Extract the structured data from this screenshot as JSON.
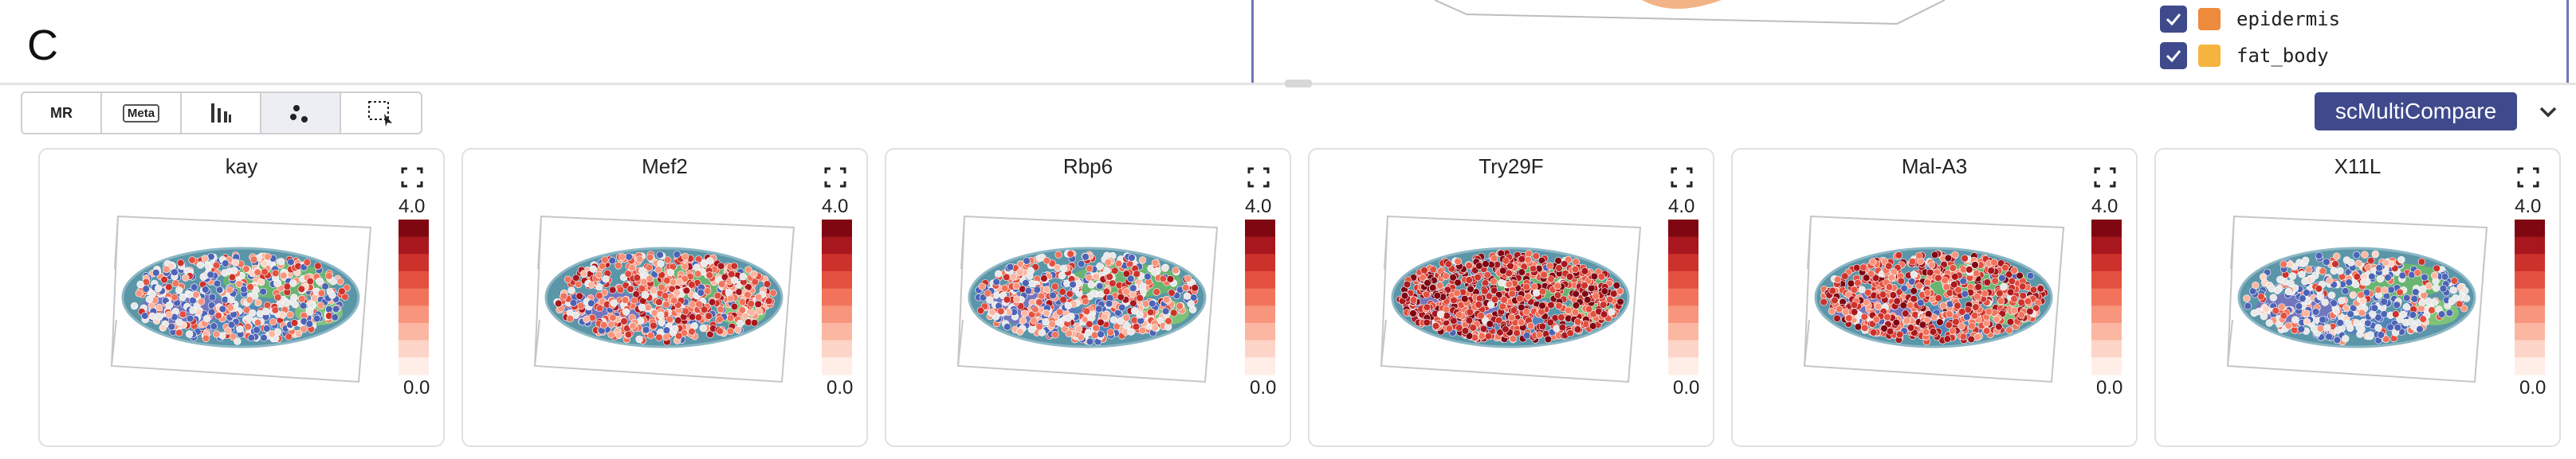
{
  "panel_label": "C",
  "legend": [
    {
      "label": "epidermis",
      "color": "#ee8a3c",
      "checked": true
    },
    {
      "label": "fat_body",
      "color": "#f6b43e",
      "checked": true
    }
  ],
  "toolbar": {
    "buttons": [
      {
        "name": "mr-button",
        "label": "MR",
        "active": false
      },
      {
        "name": "meta-button",
        "label": "Meta",
        "active": false
      },
      {
        "name": "bar-chart-button",
        "label": "",
        "icon": "bar-chart-icon",
        "active": false
      },
      {
        "name": "scatter-button",
        "label": "",
        "icon": "scatter-icon",
        "active": true
      },
      {
        "name": "lasso-select-button",
        "label": "",
        "icon": "box-select-icon",
        "active": false
      }
    ]
  },
  "compare_button": "scMultiCompare",
  "colorbar": {
    "max_label": "4.0",
    "min_label": "0.0"
  },
  "colors": {
    "accent": "#3f4a8c",
    "divider": "#6d78b6"
  },
  "genes": [
    {
      "name": "kay",
      "expression_level": 0.35,
      "red_fraction": 0.45
    },
    {
      "name": "Mef2",
      "expression_level": 0.55,
      "red_fraction": 0.78
    },
    {
      "name": "Rbp6",
      "expression_level": 0.45,
      "red_fraction": 0.55
    },
    {
      "name": "Try29F",
      "expression_level": 0.9,
      "red_fraction": 0.97
    },
    {
      "name": "Mal-A3",
      "expression_level": 0.7,
      "red_fraction": 0.9
    },
    {
      "name": "X11L",
      "expression_level": 0.25,
      "red_fraction": 0.32
    }
  ]
}
